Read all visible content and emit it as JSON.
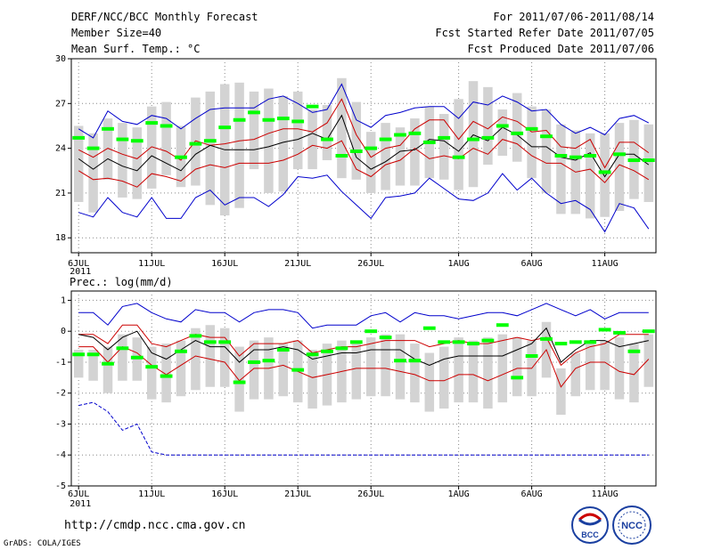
{
  "header": {
    "title": "DERF/NCC/BCC Monthly Forecast",
    "member_size": "Member Size=40",
    "variable": "Mean Surf. Temp.: °C",
    "period": "For 2011/07/06-2011/08/14",
    "start_date": "Fcst Started Refer Date 2011/07/05",
    "produced_date": "Fcst Produced Date 2011/07/06"
  },
  "footer": {
    "url": "http://cmdp.ncc.cma.gov.cn",
    "credit": "GrADS: COLA/IGES"
  },
  "logos": {
    "bcc": "BCC",
    "ncc": "NCC"
  },
  "colors": {
    "box": "#d3d3d3",
    "median": "#00ff00",
    "extreme": "#0000cc",
    "quartile": "#cc0000",
    "mean": "#000000",
    "grid": "#888888"
  },
  "chart_data": [
    {
      "type": "box-ensemble",
      "title": "Mean Surf. Temp.: °C",
      "x_labels": [
        "6JUL",
        "11JUL",
        "16JUL",
        "21JUL",
        "26JUL",
        "1AUG",
        "6AUG",
        "11AUG"
      ],
      "x_label_days": [
        1,
        6,
        11,
        16,
        21,
        27,
        32,
        37
      ],
      "year_label": "2011",
      "ylim": [
        17,
        30
      ],
      "yticks": [
        18,
        21,
        24,
        27,
        30
      ],
      "days": 40,
      "series": [
        {
          "name": "max",
          "values": [
            19.7,
            19.4,
            20.7,
            19.7,
            19.4,
            20.7,
            19.3,
            19.3,
            20.7,
            21.2,
            20.2,
            20.7,
            20.7,
            20.1,
            20.9,
            22.1,
            22.0,
            22.2,
            21.1,
            20.2,
            19.3,
            20.7,
            20.8,
            21.0,
            22.0,
            21.3,
            20.6,
            20.5,
            21.0,
            22.3,
            21.2,
            22.0,
            21.0,
            20.3,
            20.5,
            19.9,
            18.4,
            20.3,
            20.0,
            18.6
          ]
        },
        {
          "name": "upper",
          "values": [
            22.5,
            21.9,
            22.0,
            21.8,
            21.4,
            22.3,
            22.1,
            21.8,
            22.6,
            22.9,
            22.7,
            23.0,
            23.0,
            23.0,
            23.2,
            23.6,
            24.2,
            24.0,
            24.5,
            22.6,
            22.1,
            22.9,
            23.2,
            24.0,
            23.3,
            23.5,
            23.3,
            24.0,
            23.6,
            24.6,
            24.3,
            23.5,
            23.0,
            23.0,
            22.4,
            22.6,
            21.7,
            22.9,
            22.5,
            21.9
          ]
        },
        {
          "name": "mean",
          "values": [
            23.3,
            22.6,
            23.3,
            22.8,
            22.5,
            23.5,
            23.0,
            22.5,
            23.6,
            24.2,
            23.9,
            23.9,
            23.9,
            24.1,
            24.4,
            24.6,
            25.0,
            24.6,
            26.2,
            23.4,
            22.6,
            23.1,
            23.8,
            23.9,
            24.6,
            24.5,
            23.8,
            24.9,
            24.5,
            25.4,
            24.9,
            24.1,
            24.1,
            23.4,
            23.2,
            23.7,
            22.1,
            23.6,
            23.6,
            22.9
          ]
        },
        {
          "name": "lower",
          "values": [
            23.9,
            23.4,
            24.0,
            23.6,
            23.3,
            24.1,
            23.8,
            23.2,
            24.5,
            24.2,
            24.3,
            24.5,
            24.6,
            25.0,
            25.3,
            25.3,
            25.1,
            25.7,
            27.3,
            24.9,
            23.4,
            24.0,
            24.2,
            25.3,
            25.9,
            25.9,
            24.6,
            25.8,
            25.3,
            26.1,
            25.8,
            25.1,
            25.2,
            24.1,
            24.0,
            24.6,
            22.7,
            24.4,
            24.4,
            23.7
          ]
        },
        {
          "name": "min",
          "values": [
            25.3,
            24.7,
            26.5,
            25.8,
            25.6,
            26.2,
            26.0,
            25.3,
            26.0,
            26.6,
            26.7,
            26.7,
            26.7,
            27.3,
            27.5,
            27.0,
            26.4,
            26.6,
            28.3,
            25.9,
            25.4,
            26.2,
            26.4,
            26.7,
            26.8,
            26.8,
            26.0,
            27.1,
            26.9,
            27.5,
            27.1,
            26.5,
            26.6,
            25.6,
            25.0,
            25.4,
            24.9,
            26.0,
            26.2,
            25.7
          ]
        },
        {
          "name": "box_high",
          "values": [
            25.5,
            25.0,
            26.0,
            25.7,
            25.4,
            26.8,
            27.1,
            25.5,
            27.4,
            27.8,
            28.3,
            28.4,
            27.8,
            28.0,
            27.5,
            27.8,
            26.6,
            26.9,
            28.7,
            27.1,
            25.1,
            25.7,
            25.4,
            26.0,
            26.8,
            26.3,
            27.3,
            28.5,
            28.1,
            26.6,
            27.7,
            26.8,
            26.6,
            25.6,
            25.2,
            25.0,
            25.0,
            25.7,
            25.9,
            25.6
          ]
        },
        {
          "name": "box_low",
          "values": [
            20.4,
            19.7,
            21.9,
            20.7,
            20.6,
            21.3,
            22.2,
            21.4,
            21.5,
            20.2,
            19.5,
            20.0,
            22.6,
            21.0,
            21.1,
            22.6,
            22.6,
            23.2,
            22.0,
            21.9,
            21.0,
            21.2,
            21.5,
            21.5,
            22.0,
            21.9,
            21.2,
            21.4,
            22.9,
            23.5,
            23.1,
            22.0,
            21.0,
            19.6,
            19.6,
            19.3,
            19.4,
            19.8,
            20.6,
            20.4
          ]
        },
        {
          "name": "median",
          "values": [
            24.7,
            24.0,
            25.3,
            24.6,
            24.5,
            25.7,
            25.5,
            23.4,
            24.3,
            24.5,
            25.4,
            25.9,
            26.4,
            25.9,
            26.0,
            25.8,
            26.8,
            24.6,
            23.5,
            23.8,
            24.0,
            24.6,
            24.9,
            25.0,
            24.4,
            24.7,
            23.4,
            24.6,
            24.7,
            25.5,
            25.0,
            25.3,
            24.8,
            23.5,
            23.4,
            23.5,
            22.4,
            23.6,
            23.2,
            23.2
          ]
        }
      ]
    },
    {
      "type": "box-ensemble",
      "title": "Prec.: log(mm/d)",
      "x_labels": [
        "6JUL",
        "11JUL",
        "16JUL",
        "21JUL",
        "26JUL",
        "1AUG",
        "6AUG",
        "11AUG"
      ],
      "x_label_days": [
        1,
        6,
        11,
        16,
        21,
        27,
        32,
        37
      ],
      "year_label": "2011",
      "ylim": [
        -5,
        1.3
      ],
      "yticks": [
        -5,
        -4,
        -3,
        -2,
        -1,
        0,
        1
      ],
      "days": 40,
      "series": [
        {
          "name": "max",
          "values": [
            0.6,
            0.6,
            0.2,
            0.8,
            0.9,
            0.6,
            0.4,
            0.3,
            0.7,
            0.6,
            0.6,
            0.3,
            0.6,
            0.7,
            0.7,
            0.6,
            0.1,
            0.2,
            0.2,
            0.2,
            0.5,
            0.6,
            0.3,
            0.6,
            0.5,
            0.5,
            0.4,
            0.5,
            0.6,
            0.6,
            0.5,
            0.7,
            0.9,
            0.7,
            0.5,
            0.7,
            0.4,
            0.6,
            0.6,
            0.6
          ]
        },
        {
          "name": "upper",
          "values": [
            -0.1,
            -0.1,
            -0.4,
            0.2,
            0.2,
            -0.4,
            -0.5,
            -0.3,
            -0.1,
            -0.2,
            -0.2,
            -0.8,
            -0.4,
            -0.4,
            -0.4,
            -0.3,
            -0.7,
            -0.6,
            -0.5,
            -0.5,
            -0.4,
            -0.3,
            -0.3,
            -0.3,
            -0.5,
            -0.4,
            -0.3,
            -0.4,
            -0.4,
            -0.3,
            -0.2,
            -0.3,
            -0.2,
            -1.1,
            -0.7,
            -0.5,
            -0.4,
            -0.1,
            -0.1,
            -0.1
          ]
        },
        {
          "name": "mean",
          "values": [
            -0.1,
            -0.2,
            -0.6,
            -0.2,
            0.0,
            -0.7,
            -0.9,
            -0.6,
            -0.3,
            -0.5,
            -0.5,
            -1.0,
            -0.6,
            -0.6,
            -0.5,
            -0.6,
            -0.9,
            -0.8,
            -0.7,
            -0.7,
            -0.6,
            -0.6,
            -0.6,
            -0.9,
            -1.1,
            -0.9,
            -0.8,
            -0.8,
            -0.8,
            -0.8,
            -0.6,
            -0.4,
            0.1,
            -1.0,
            -0.6,
            -0.3,
            -0.3,
            -0.5,
            -0.4,
            -0.3
          ]
        },
        {
          "name": "lower",
          "values": [
            -0.5,
            -0.5,
            -1.0,
            -0.5,
            -0.7,
            -1.1,
            -1.4,
            -1.1,
            -0.8,
            -0.9,
            -1.0,
            -1.6,
            -1.2,
            -1.2,
            -1.1,
            -1.3,
            -1.5,
            -1.4,
            -1.3,
            -1.2,
            -1.2,
            -1.2,
            -1.3,
            -1.4,
            -1.6,
            -1.6,
            -1.4,
            -1.4,
            -1.6,
            -1.4,
            -1.2,
            -1.2,
            -0.6,
            -1.8,
            -1.2,
            -1.0,
            -1.0,
            -1.3,
            -1.4,
            -0.9
          ]
        },
        {
          "name": "min",
          "values": [
            -2.4,
            -2.3,
            -2.6,
            -3.2,
            -3.0,
            -3.9,
            -4.0,
            -4.0,
            -4.0,
            -4.0,
            -4.0,
            -4.0,
            -4.0,
            -4.0,
            -4.0,
            -4.0,
            -4.0,
            -4.0,
            -4.0,
            -4.0,
            -4.0,
            -4.0,
            -4.0,
            -4.0,
            -4.0,
            -4.0,
            -4.0,
            -4.0,
            -4.0,
            -4.0,
            -4.0,
            -4.0,
            -4.0,
            -4.0,
            -4.0,
            -4.0,
            -4.0,
            -4.0,
            -4.0,
            -4.0
          ]
        },
        {
          "name": "box_high",
          "values": [
            -0.6,
            -0.6,
            -0.5,
            -0.1,
            -0.2,
            -0.5,
            -0.4,
            -0.3,
            0.1,
            0.2,
            0.1,
            -0.5,
            -0.3,
            -0.2,
            -0.4,
            -0.3,
            -0.6,
            -0.4,
            -0.3,
            -0.3,
            -0.2,
            -0.1,
            -0.1,
            -0.4,
            -0.7,
            -0.5,
            -0.2,
            -0.3,
            -0.2,
            -0.1,
            -0.2,
            -0.3,
            0.3,
            -1.2,
            -0.7,
            -0.3,
            -0.3,
            -0.2,
            -0.4,
            -0.1
          ]
        },
        {
          "name": "box_low",
          "values": [
            -1.5,
            -1.6,
            -2.0,
            -1.6,
            -1.6,
            -2.2,
            -2.3,
            -2.1,
            -1.9,
            -1.8,
            -1.8,
            -2.6,
            -2.2,
            -2.2,
            -2.1,
            -2.3,
            -2.5,
            -2.4,
            -2.3,
            -2.2,
            -2.1,
            -2.1,
            -2.2,
            -2.3,
            -2.6,
            -2.5,
            -2.3,
            -2.3,
            -2.5,
            -2.3,
            -2.1,
            -2.1,
            -1.5,
            -2.7,
            -2.1,
            -1.9,
            -1.9,
            -2.2,
            -2.3,
            -1.8
          ]
        },
        {
          "name": "median",
          "values": [
            -0.75,
            -0.75,
            -1.05,
            -0.55,
            -0.85,
            -1.15,
            -1.45,
            -0.65,
            -0.15,
            -0.35,
            -0.35,
            -1.65,
            -1.0,
            -0.95,
            -0.6,
            -1.25,
            -0.75,
            -0.65,
            -0.55,
            -0.35,
            0.0,
            -0.2,
            -0.95,
            -0.95,
            0.1,
            -0.35,
            -0.35,
            -0.4,
            -0.3,
            0.2,
            -1.5,
            -0.8,
            -0.25,
            -0.4,
            -0.35,
            -0.35,
            0.05,
            -0.05,
            -0.65,
            0.0
          ]
        }
      ]
    }
  ]
}
